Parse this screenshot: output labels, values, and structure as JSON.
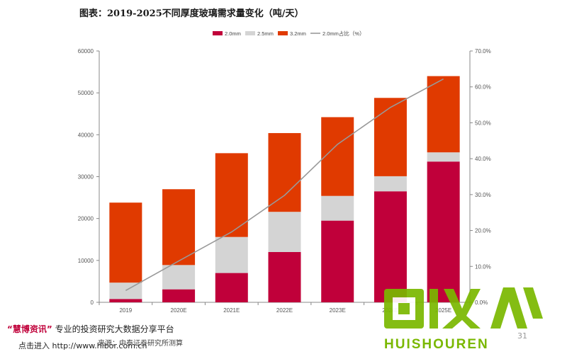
{
  "title": "图表：2019-2025不同厚度玻璃需求量变化（吨/天）",
  "chart_data": {
    "type": "bar",
    "stacked": true,
    "categories": [
      "2019",
      "2020E",
      "2021E",
      "2022E",
      "2023E",
      "2024E",
      "2025E"
    ],
    "series": [
      {
        "name": "2.0mm",
        "color": "#c0003a",
        "values": [
          800,
          3100,
          7000,
          12000,
          19500,
          26500,
          33600
        ]
      },
      {
        "name": "2.5mm",
        "color": "#d4d4d4",
        "values": [
          3900,
          5800,
          8600,
          9600,
          5900,
          3600,
          2200
        ]
      },
      {
        "name": "3.2mm",
        "color": "#e03a00",
        "values": [
          19100,
          18100,
          20000,
          18800,
          18800,
          18700,
          18200
        ]
      }
    ],
    "line_series": {
      "name": "2.0mm占比（%）",
      "color": "#999999",
      "values": [
        3.3,
        11.5,
        19.6,
        29.8,
        44.0,
        54.3,
        62.2
      ]
    },
    "ylim": [
      0,
      60000
    ],
    "yticks": [
      "0",
      "10000",
      "20000",
      "30000",
      "40000",
      "50000",
      "60000"
    ],
    "y2lim": [
      0,
      70
    ],
    "y2ticks": [
      "0.0%",
      "10.0%",
      "20.0%",
      "30.0%",
      "40.0%",
      "50.0%",
      "60.0%",
      "70.0%"
    ],
    "legend_position": "top-center",
    "grid": false
  },
  "footer": {
    "brand_quote": "“慧博资讯”",
    "brand_text": "专业的投资研究大数据分享平台",
    "link_text": "点击进入 http://www.hibor.com.cn",
    "source": "来源：中泰证券研究所测算",
    "page_number": "31"
  },
  "watermark": {
    "logo_text": "HUISHOUREN",
    "color": "#7ab800"
  }
}
